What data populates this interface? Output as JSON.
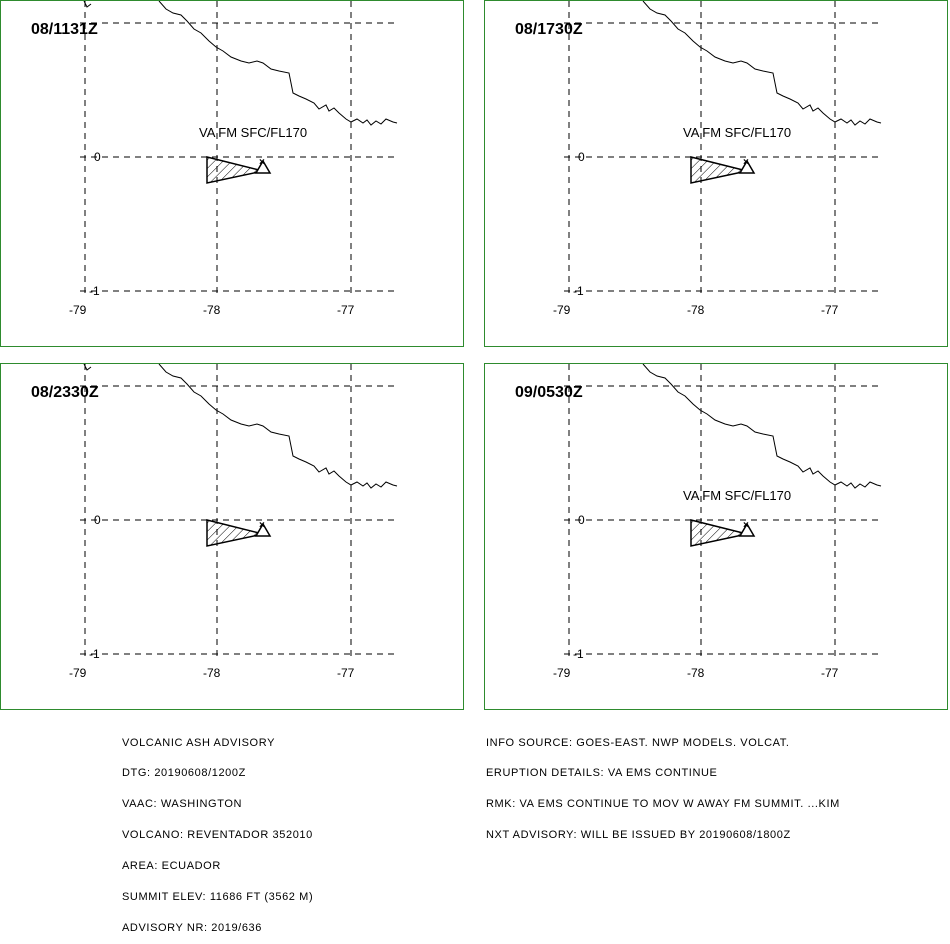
{
  "panels": [
    {
      "time": "08/1131Z",
      "label": "VA FM SFC/FL170"
    },
    {
      "time": "08/1730Z",
      "label": "VA FM SFC/FL170"
    },
    {
      "time": "08/2330Z",
      "label": ""
    },
    {
      "time": "09/0530Z",
      "label": "VA FM SFC/FL170"
    }
  ],
  "axes": {
    "lat_labels": [
      "0",
      "-1"
    ],
    "lon_labels": [
      "-79",
      "-78",
      "-77"
    ]
  },
  "colors": {
    "panel_border": "#2e8b2e",
    "lines": "#000000"
  },
  "advisory": {
    "line1": "VOLCANIC ASH ADVISORY",
    "line2": "DTG: 20190608/1200Z",
    "line3": "VAAC: WASHINGTON",
    "line4": "VOLCANO: REVENTADOR 352010",
    "line5": "AREA: ECUADOR",
    "line6": "SUMMIT ELEV: 11686 FT (3562 M)",
    "line7": "ADVISORY NR: 2019/636"
  },
  "details": {
    "line1": "INFO SOURCE: GOES-EAST. NWP MODELS. VOLCAT.",
    "line2": "ERUPTION DETAILS: VA EMS CONTINUE",
    "line3": "RMK: VA EMS CONTINUE TO MOV W AWAY FM SUMMIT. ...KIM",
    "line4": "NXT ADVISORY: WILL BE ISSUED BY 20190608/1800Z"
  }
}
